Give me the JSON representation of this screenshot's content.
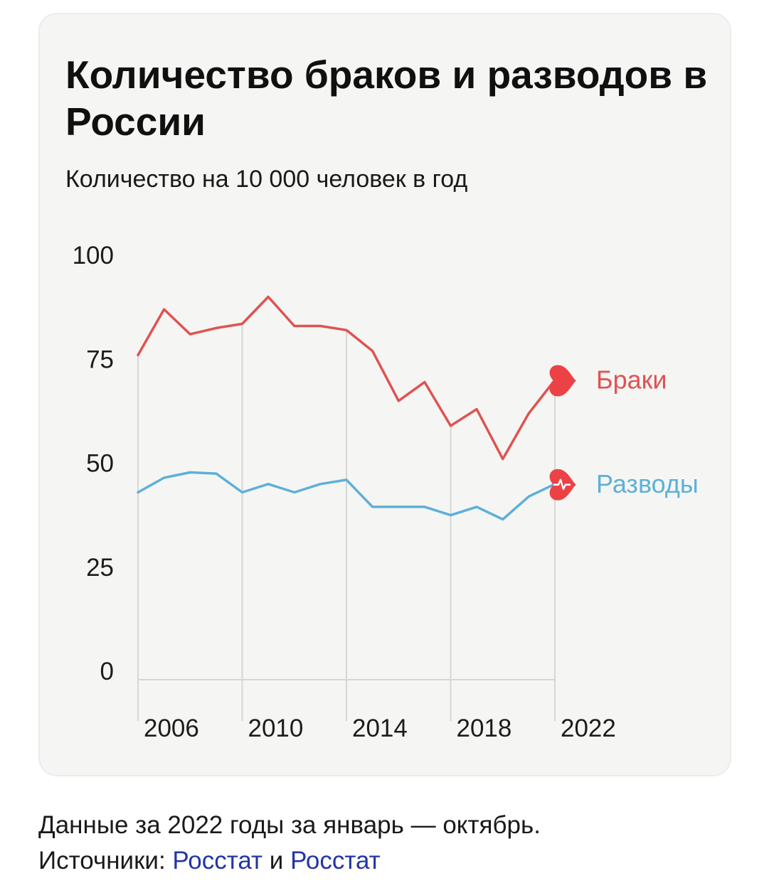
{
  "chart_data": {
    "type": "line",
    "title": "Количество браков и разводов в России",
    "subtitle": "Количество на 10 000 человек в год",
    "xlabel": "",
    "ylabel": "",
    "ylim": [
      0,
      100
    ],
    "xlim": [
      2005,
      2021
    ],
    "yticks": [
      "0",
      "25",
      "50",
      "75",
      "100"
    ],
    "ytick_values": [
      0,
      25,
      50,
      75,
      100
    ],
    "xticks": [
      "2006",
      "2010",
      "2014",
      "2018",
      "2022"
    ],
    "xtick_values": [
      2005,
      2009,
      2013,
      2017,
      2021
    ],
    "x": [
      2005,
      2006,
      2007,
      2008,
      2009,
      2010,
      2011,
      2012,
      2013,
      2014,
      2015,
      2016,
      2017,
      2018,
      2019,
      2020,
      2021
    ],
    "series": [
      {
        "name": "Браки",
        "color": "#e05252",
        "values": [
          76,
          87,
          81,
          82.5,
          83.5,
          90,
          83,
          83,
          82,
          77,
          65,
          69.5,
          59,
          63,
          51,
          62,
          70
        ]
      },
      {
        "name": "Разводы",
        "color": "#5eb0d9",
        "values": [
          43,
          46.5,
          47.8,
          47.5,
          43,
          45,
          43,
          45,
          46,
          39.5,
          39.5,
          39.5,
          37.5,
          39.5,
          36.5,
          42,
          45
        ]
      }
    ],
    "grid": "vertical lines at x ticks",
    "legend": "inline labels at line ends with heart icons"
  },
  "footnote": {
    "line1": "Данные за 2022 годы за январь — октябрь.",
    "sources_prefix": "Источники: ",
    "source1": "Росстат",
    "conjunction": " и ",
    "source2": "Росстат"
  },
  "icons": {
    "end_marker": "heart-icon"
  },
  "colors": {
    "card_bg": "#f5f6f3",
    "link": "#2236a3",
    "grid": "#d6d6d6"
  }
}
